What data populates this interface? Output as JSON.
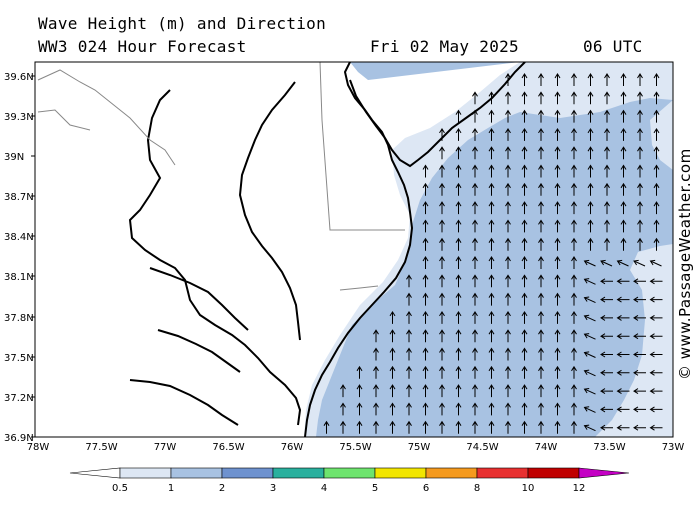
{
  "header": {
    "title": "Wave Height (m) and Direction",
    "model": "WW3 024 Hour Forecast",
    "date": "Fri 02 May 2025",
    "time": "06 UTC"
  },
  "credit": "© www.PassageWeather.com",
  "axes": {
    "lat_labels": [
      "39.6N",
      "39.3N",
      "39N",
      "38.7N",
      "38.4N",
      "38.1N",
      "37.8N",
      "37.5N",
      "37.2N",
      "36.9N"
    ],
    "lon_labels": [
      "78W",
      "77.5W",
      "77W",
      "76.5W",
      "76W",
      "75.5W",
      "75W",
      "74.5W",
      "74W",
      "73.5W",
      "73W"
    ]
  },
  "legend": {
    "labels": [
      "0.5",
      "1",
      "2",
      "3",
      "4",
      "5",
      "6",
      "8",
      "10",
      "12"
    ],
    "colors": [
      "#dde7f4",
      "#a8c2e2",
      "#6e92cf",
      "#2ab09e",
      "#6ee46e",
      "#f2e600",
      "#f59a1e",
      "#e83030",
      "#c00000",
      "#c400c4"
    ]
  },
  "colors": {
    "band_05": "#dde7f4",
    "band_1": "#a8c2e2",
    "land": "#ffffff",
    "coast": "#000000",
    "border": "#888888"
  }
}
